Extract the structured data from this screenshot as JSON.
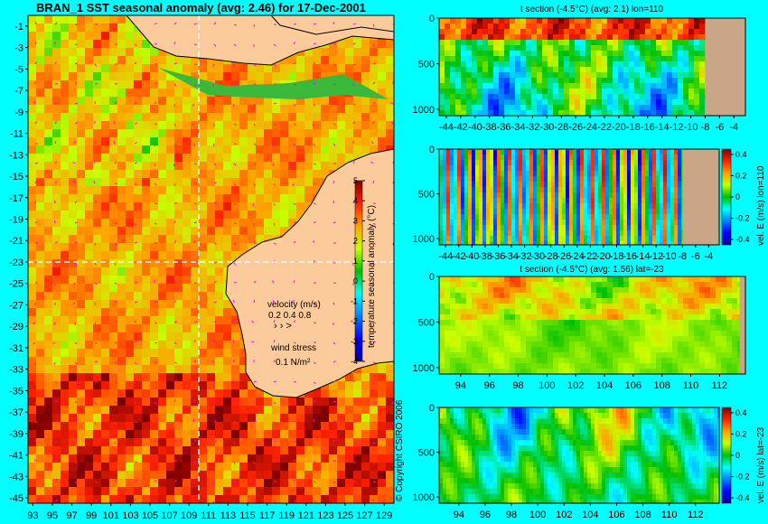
{
  "colors": {
    "background": "#00ffff",
    "land": "#fccb9b",
    "land_grey": "#c9a688",
    "dash": "#ffffff",
    "vector": "#ff00ff"
  },
  "chart_data": [
    {
      "id": "map",
      "type": "heatmap",
      "title": "BRAN_1  SST seasonal anomaly (avg: 2.46) for 17-Dec-2001",
      "x_ticks": [
        "93",
        "95",
        "97",
        "99",
        "101",
        "103",
        "105",
        "107",
        "109",
        "111",
        "113",
        "115",
        "117",
        "119",
        "121",
        "123",
        "125",
        "127",
        "129"
      ],
      "y_ticks": [
        "-1",
        "-3",
        "-5",
        "-7",
        "-9",
        "-11",
        "-13",
        "-15",
        "-17",
        "-19",
        "-21",
        "-23",
        "-25",
        "-27",
        "-29",
        "-31",
        "-33",
        "-35",
        "-37",
        "-39",
        "-41",
        "-43",
        "-45"
      ],
      "xlim": [
        92.5,
        130
      ],
      "ylim": [
        -45.5,
        0
      ],
      "colorbar": {
        "label": "temperature seasonal anomaly (°C)",
        "ticks": [
          "5",
          "4",
          "3",
          "2",
          "1",
          "0",
          "-1",
          "-2",
          "-3",
          "-4"
        ],
        "range": [
          -4,
          5
        ]
      },
      "velocity_legend": {
        "title": "velocity (m/s)",
        "values": "0.2 0.4 0.8",
        "arrows": "› › >"
      },
      "wind_legend": {
        "title": "wind stress",
        "value": "0.1 N/m²"
      },
      "section_lines": {
        "lon": 110,
        "lat": -23
      },
      "copyright": "© Copyright CSIRO 2006"
    },
    {
      "id": "t_section_lon",
      "type": "heatmap",
      "title": "t section (-4.5°C) (avg: 2.1) lon=110",
      "x_ticks": [
        "-44",
        "-42",
        "-40",
        "-38",
        "-36",
        "-34",
        "-32",
        "-30",
        "-28",
        "-26",
        "-24",
        "-22",
        "-20",
        "-18",
        "-16",
        "-14",
        "-12",
        "-10",
        "-8",
        "-6",
        "-4"
      ],
      "xlim": [
        -45,
        -2.4
      ],
      "y_ticks": [
        "0",
        "500",
        "1000"
      ],
      "ylim": [
        0,
        1070
      ],
      "land_from_x": -8
    },
    {
      "id": "vel_section_lon",
      "type": "heatmap",
      "title": "",
      "x_ticks": [
        "-44",
        "-42",
        "-40",
        "-38",
        "-36",
        "-34",
        "-32",
        "-30",
        "-28",
        "-26",
        "-24",
        "-22",
        "-20",
        "-18",
        "-16",
        "-14",
        "-12",
        "-10",
        "-8",
        "-6",
        "-4"
      ],
      "xlim": [
        -45,
        -2.4
      ],
      "y_ticks": [
        "0",
        "500",
        "1000"
      ],
      "ylim": [
        0,
        1070
      ],
      "colorbar": {
        "label": "vel. E (m/s) lon=110",
        "ticks": [
          "0.4",
          "0.2",
          "0",
          "-0.2",
          "-0.4"
        ],
        "range": [
          -0.45,
          0.45
        ]
      },
      "land_from_x": -8
    },
    {
      "id": "t_section_lat",
      "type": "heatmap",
      "title": "t section (-4.5°C) (avg: 1.56) lat=-23",
      "x_ticks": [
        "94",
        "96",
        "98",
        "100",
        "102",
        "104",
        "106",
        "108",
        "110",
        "112"
      ],
      "xlim": [
        92.5,
        113.8
      ],
      "y_ticks": [
        "0",
        "500",
        "1000"
      ],
      "ylim": [
        0,
        1070
      ],
      "land_from_x": 113.4
    },
    {
      "id": "vel_section_lat",
      "type": "heatmap",
      "title": "",
      "x_ticks": [
        "94",
        "96",
        "98",
        "100",
        "102",
        "104",
        "106",
        "108",
        "110",
        "112"
      ],
      "xlim": [
        92.5,
        113.8
      ],
      "y_ticks": [
        "0",
        "500",
        "1000"
      ],
      "ylim": [
        0,
        1070
      ],
      "colorbar": {
        "label": "vel. E (m/s) lat=-23",
        "ticks": [
          "0.4",
          "0.2",
          "0",
          "-0.2",
          "-0.4"
        ],
        "range": [
          -0.45,
          0.45
        ]
      }
    }
  ]
}
